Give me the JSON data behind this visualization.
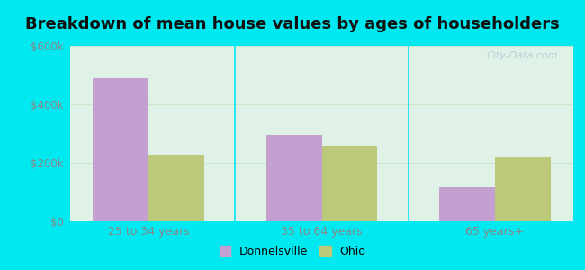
{
  "title": "Breakdown of mean house values by ages of householders",
  "categories": [
    "25 to 34 years",
    "35 to 64 years",
    "65 years+"
  ],
  "donnelsville_values": [
    490000,
    295000,
    118000
  ],
  "ohio_values": [
    228000,
    260000,
    218000
  ],
  "bar_color_donnelsville": "#c4a0d0",
  "bar_color_ohio": "#bcc87a",
  "ylim": [
    0,
    600000
  ],
  "yticks": [
    0,
    200000,
    400000,
    600000
  ],
  "ytick_labels": [
    "$0",
    "$200k",
    "$400k",
    "$600k"
  ],
  "legend_labels": [
    "Donnelsville",
    "Ohio"
  ],
  "bg_outer": "#00e8f0",
  "bg_inner": "#e0f2e8",
  "title_fontsize": 13,
  "bar_width": 0.32,
  "grid_color": "#c8e8c8",
  "tick_color": "#888888"
}
